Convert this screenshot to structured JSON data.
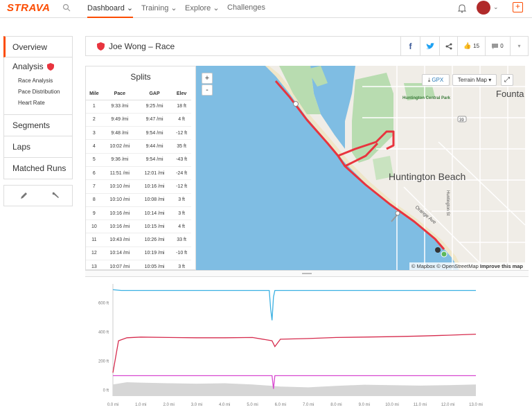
{
  "nav": {
    "logo": "STRAVA",
    "items": [
      {
        "label": "Dashboard ⌄"
      },
      {
        "label": "Training ⌄"
      },
      {
        "label": "Explore ⌄"
      },
      {
        "label": "Challenges"
      }
    ],
    "avatar_caret": "⌄",
    "plus": "+"
  },
  "sidebar": {
    "overview": "Overview",
    "analysis": "Analysis",
    "sub": [
      "Race Analysis",
      "Pace Distribution",
      "Heart Rate"
    ],
    "segments": "Segments",
    "laps": "Laps",
    "matched": "Matched Runs"
  },
  "header": {
    "title": "Joe Wong – Race",
    "kudos_count": "15",
    "comment_count": "0"
  },
  "splits": {
    "title": "Splits",
    "columns": [
      "Mile",
      "Pace",
      "GAP",
      "Elev"
    ],
    "rows": [
      [
        "1",
        "9:33 /mi",
        "9:25 /mi",
        "18 ft"
      ],
      [
        "2",
        "9:49 /mi",
        "9:47 /mi",
        "4 ft"
      ],
      [
        "3",
        "9:48 /mi",
        "9:54 /mi",
        "-12 ft"
      ],
      [
        "4",
        "10:02 /mi",
        "9:44 /mi",
        "35 ft"
      ],
      [
        "5",
        "9:36 /mi",
        "9:54 /mi",
        "-43 ft"
      ],
      [
        "6",
        "11:51 /mi",
        "12:01 /mi",
        "-24 ft"
      ],
      [
        "7",
        "10:10 /mi",
        "10:16 /mi",
        "-12 ft"
      ],
      [
        "8",
        "10:10 /mi",
        "10:08 /mi",
        "3 ft"
      ],
      [
        "9",
        "10:16 /mi",
        "10:14 /mi",
        "3 ft"
      ],
      [
        "10",
        "10:16 /mi",
        "10:15 /mi",
        "4 ft"
      ],
      [
        "11",
        "10:43 /mi",
        "10:26 /mi",
        "33 ft"
      ],
      [
        "12",
        "10:14 /mi",
        "10:19 /mi",
        "-10 ft"
      ],
      [
        "13",
        "10:07 /mi",
        "10:05 /mi",
        "3 ft"
      ]
    ]
  },
  "map": {
    "zoom_in": "+",
    "zoom_out": "-",
    "gpx": "GPX",
    "terrain": "Terrain Map ▾",
    "labels": {
      "city": "Huntington Beach",
      "fountain": "Founta",
      "park": "Huntington Central Park",
      "orange": "Orange Ave",
      "hwy": "39",
      "street": "Huntington St"
    },
    "attribution": "© Mapbox © OpenStreetMap",
    "improve": "Improve this map"
  },
  "chart_data": {
    "type": "line",
    "x_ticks": [
      "0.0 mi",
      "1.0 mi",
      "2.0 mi",
      "3.0 mi",
      "4.0 mi",
      "5.0 mi",
      "6.0 mi",
      "7.0 mi",
      "8.0 mi",
      "9.0 mi",
      "10.0 mi",
      "11.0 mi",
      "12.0 mi",
      "13.0 mi"
    ],
    "y_ticks": [
      "0 ft",
      "200 ft",
      "400 ft",
      "600 ft"
    ],
    "xlim": [
      0,
      13.1
    ],
    "ylim": [
      -40,
      730
    ],
    "series": [
      {
        "color": "#3ab0e2",
        "x": [
          0,
          0.3,
          5.6,
          5.65,
          5.7,
          5.75,
          5.8,
          13.0
        ],
        "y": [
          690,
          685,
          685,
          560,
          480,
          640,
          685,
          685
        ]
      },
      {
        "color": "#d62b4d",
        "x": [
          0,
          0.2,
          0.5,
          1,
          2,
          3,
          4,
          5,
          5.7,
          5.8,
          6,
          7,
          8,
          9,
          10,
          11,
          12,
          13
        ],
        "y": [
          120,
          340,
          360,
          365,
          362,
          360,
          360,
          362,
          340,
          300,
          350,
          355,
          362,
          365,
          368,
          372,
          378,
          385
        ]
      },
      {
        "color": "#d848d0",
        "x": [
          0,
          5.7,
          5.75,
          5.8,
          13.0
        ],
        "y": [
          100,
          100,
          10,
          100,
          100
        ]
      },
      {
        "color": "#d6d6d6",
        "fill": true,
        "x": [
          0,
          0.5,
          1,
          2,
          3,
          4,
          5,
          5.7,
          6,
          7,
          8,
          9,
          10,
          11,
          12,
          13
        ],
        "y": [
          40,
          55,
          52,
          48,
          45,
          48,
          40,
          30,
          25,
          20,
          30,
          38,
          35,
          32,
          35,
          40
        ]
      }
    ]
  },
  "colors": {
    "brand": "#fc4c02",
    "water": "#7fbde3",
    "park": "#b8dcb0",
    "route": "#e8343e"
  }
}
